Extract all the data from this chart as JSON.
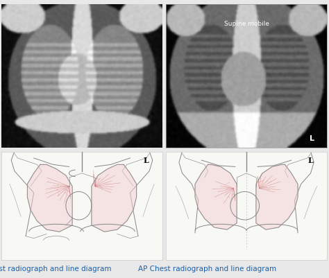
{
  "bg_color": "#e8e8e8",
  "label_color": "#1a5fa8",
  "label_fontsize": 7.5,
  "top_left_label": "PA Chest radiograph and line diagram",
  "top_right_label": "AP Chest radiograph and line diagram",
  "supine_text": "Supine mobile",
  "L_marker": "L",
  "diagram_bg": "#f8f8f5",
  "lung_fill": "#f2d0d0",
  "line_color": "#888888",
  "vasc_color": "#cc7777",
  "sep_color": "#cccccc"
}
